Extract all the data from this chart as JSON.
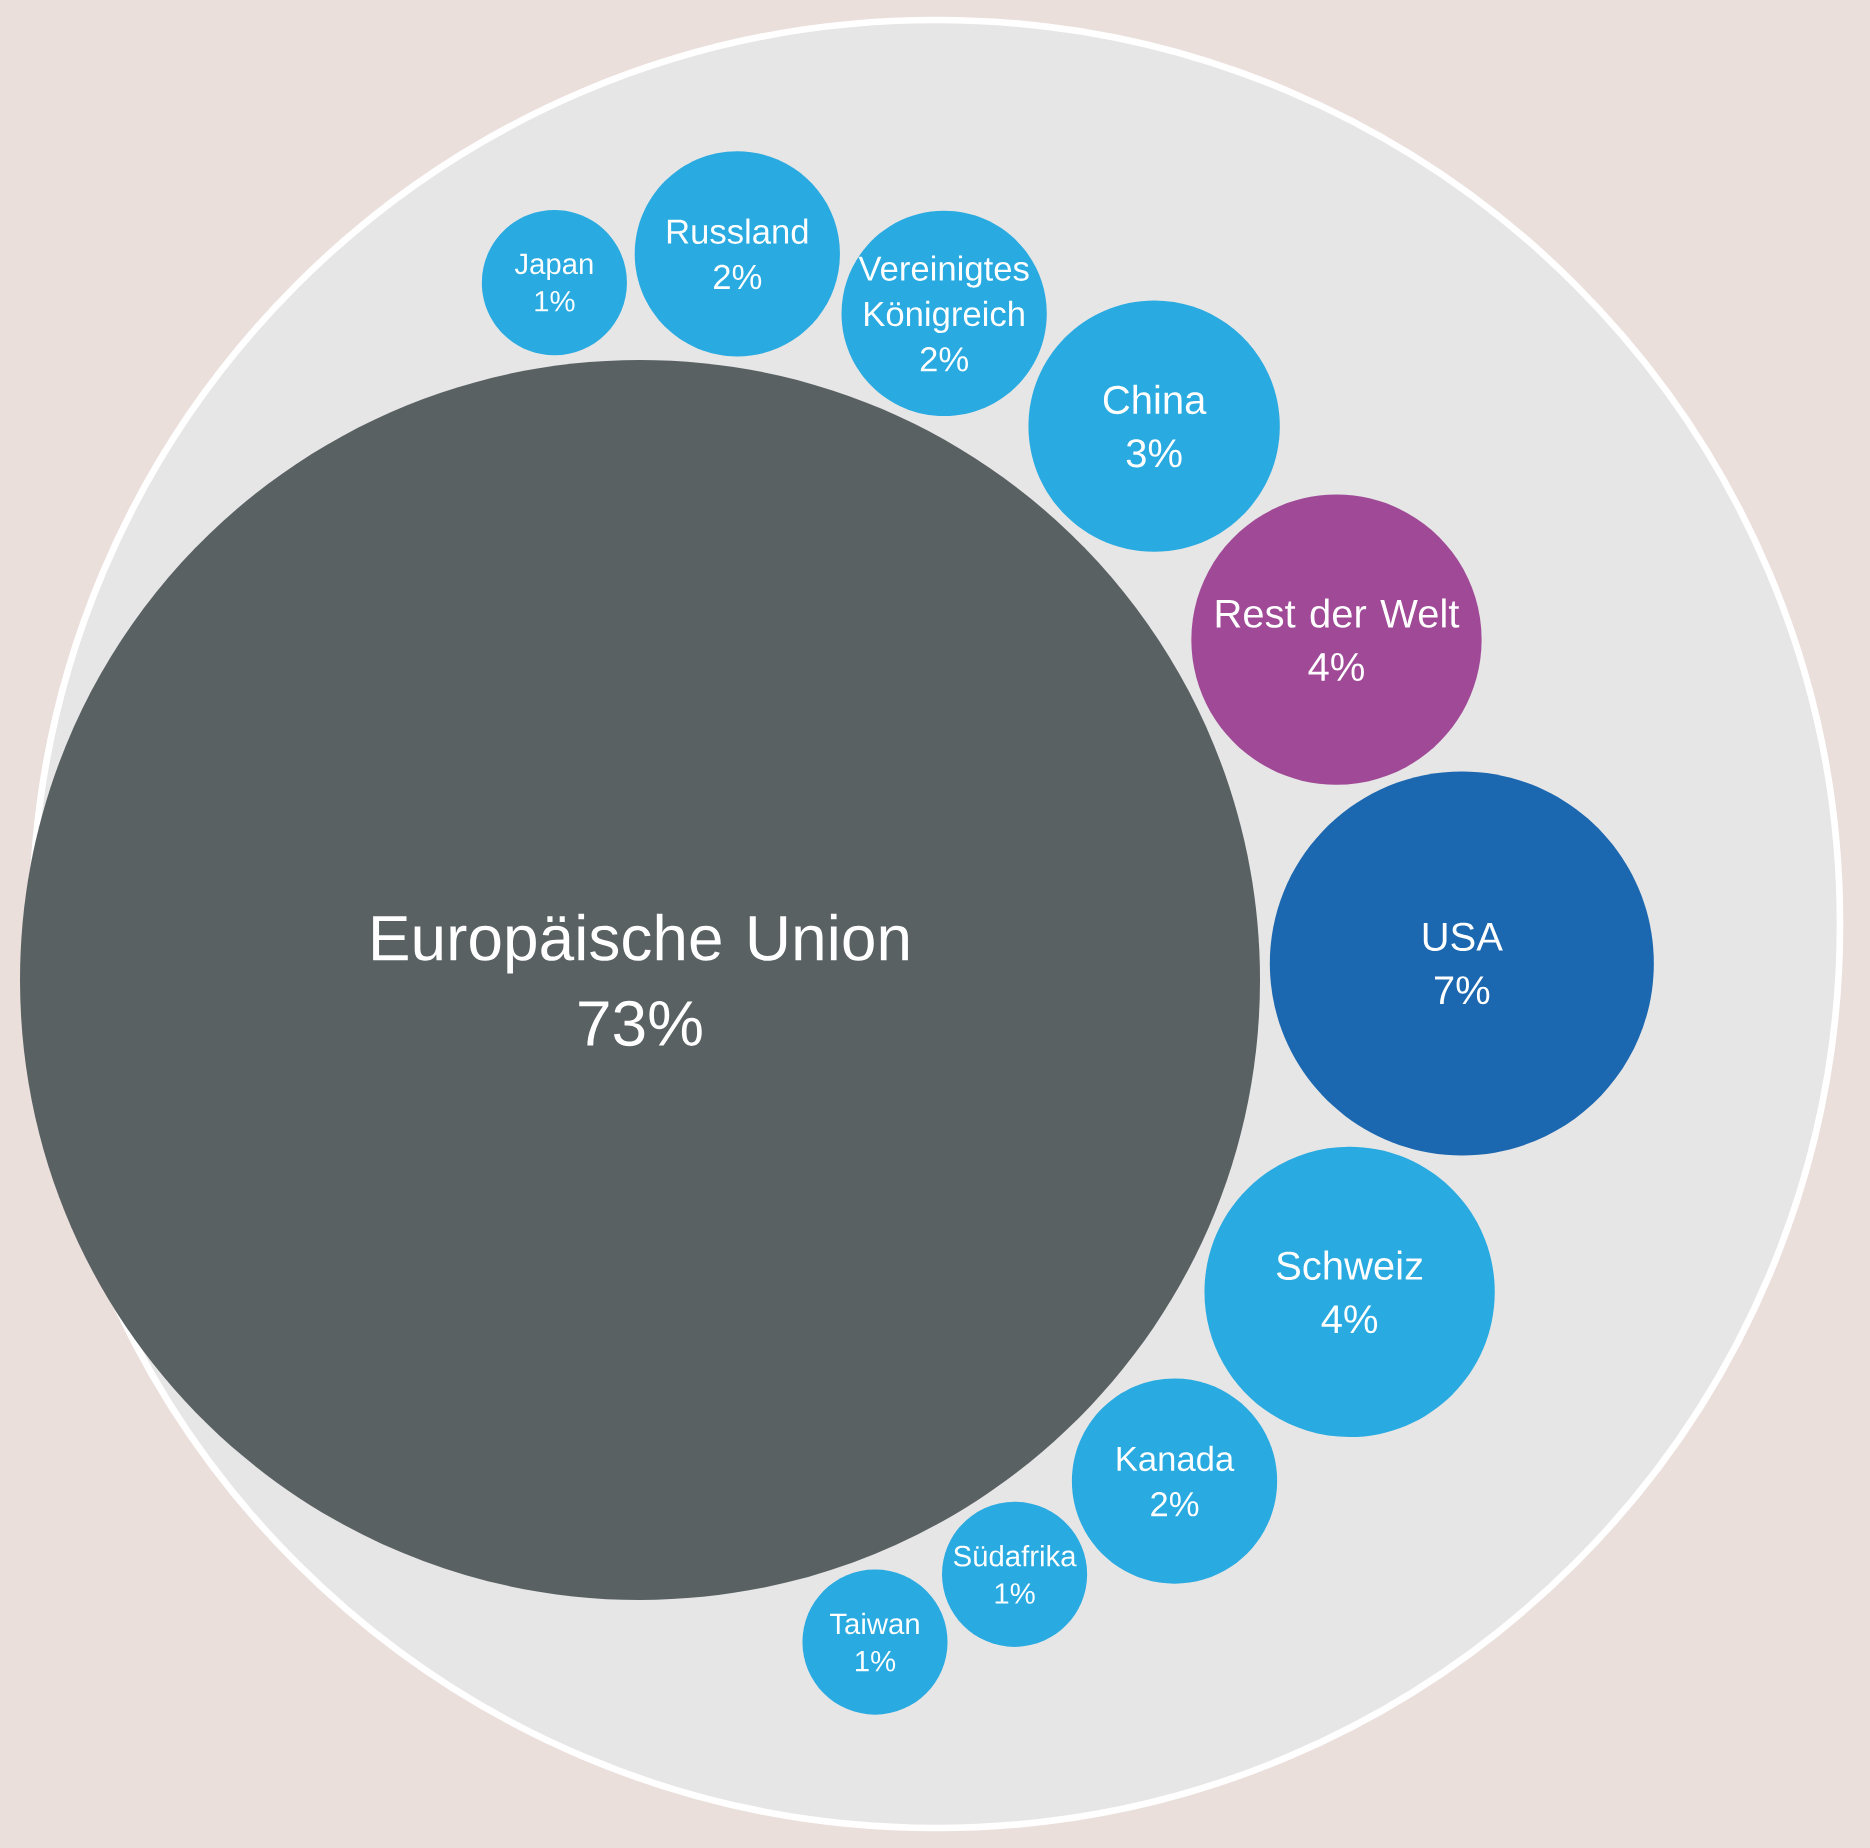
{
  "chart_data": {
    "type": "other",
    "categories": [
      "Europäische Union",
      "Japan",
      "Russland",
      "Vereinigtes Königreich",
      "China",
      "Rest der Welt",
      "USA",
      "Schweiz",
      "Kanada",
      "Südafrika",
      "Taiwan"
    ],
    "values": [
      73,
      1,
      2,
      2,
      3,
      4,
      7,
      4,
      2,
      1,
      1
    ],
    "value_labels": [
      "73%",
      "1%",
      "2%",
      "2%",
      "3%",
      "4%",
      "7%",
      "4%",
      "2%",
      "1%",
      "1%"
    ],
    "colors": [
      "#5a6163",
      "#29aae1",
      "#29aae1",
      "#29aae1",
      "#29aae1",
      "#a04a97",
      "#1b67b0",
      "#29aae1",
      "#29aae1",
      "#29aae1",
      "#29aae1"
    ]
  }
}
